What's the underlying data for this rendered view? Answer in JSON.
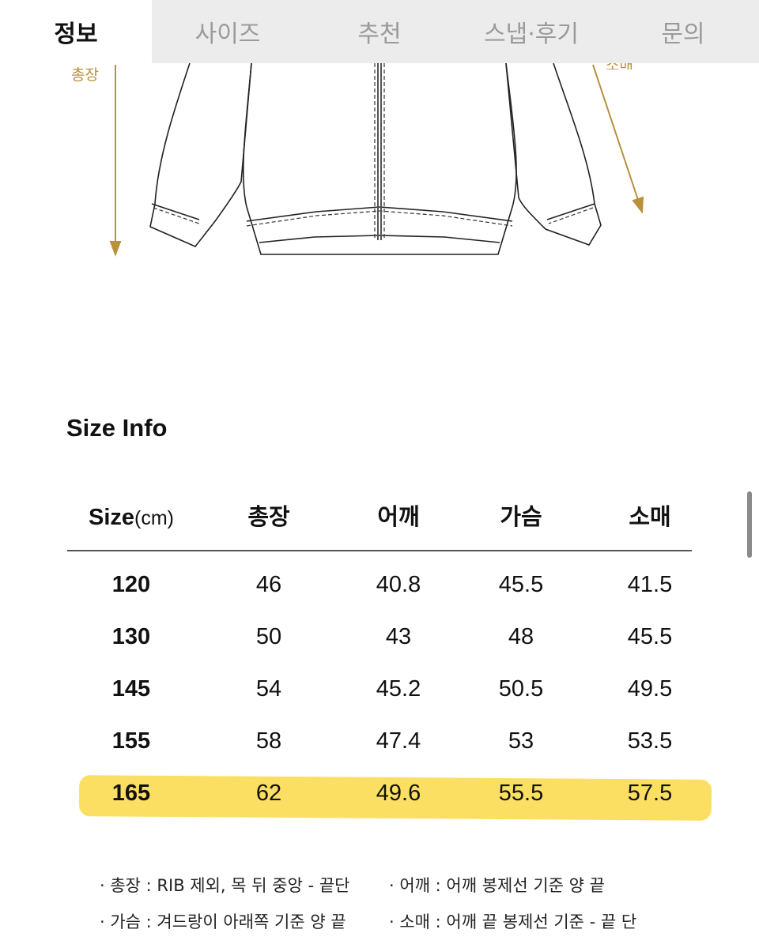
{
  "tabs": [
    {
      "label": "정보",
      "active": true
    },
    {
      "label": "사이즈"
    },
    {
      "label": "추천"
    },
    {
      "label": "스냅·후기"
    },
    {
      "label": "문의"
    }
  ],
  "diagram": {
    "length_label": "총장",
    "sleeve_label": "소매",
    "arrow_color": "#b8913a"
  },
  "section_title": "Size Info",
  "table": {
    "headers": {
      "size": "Size",
      "unit": "(cm)",
      "length": "총장",
      "shoulder": "어깨",
      "chest": "가슴",
      "sleeve": "소매"
    },
    "rows": [
      [
        "120",
        "46",
        "40.8",
        "45.5",
        "41.5"
      ],
      [
        "130",
        "50",
        "43",
        "48",
        "45.5"
      ],
      [
        "145",
        "54",
        "45.2",
        "50.5",
        "49.5"
      ],
      [
        "155",
        "58",
        "47.4",
        "53",
        "53.5"
      ],
      [
        "165",
        "62",
        "49.6",
        "55.5",
        "57.5"
      ]
    ],
    "highlighted_row": "165",
    "highlight_color": "#fbdc52"
  },
  "notes": [
    "· 총장 : RIB 제외, 목 뒤 중앙 - 끝단",
    "· 어깨 : 어깨 봉제선 기준 양 끝",
    "· 가슴 : 겨드랑이 아래쪽 기준 양 끝",
    "· 소매 : 어깨 끝 봉제선 기준 - 끝 단"
  ]
}
